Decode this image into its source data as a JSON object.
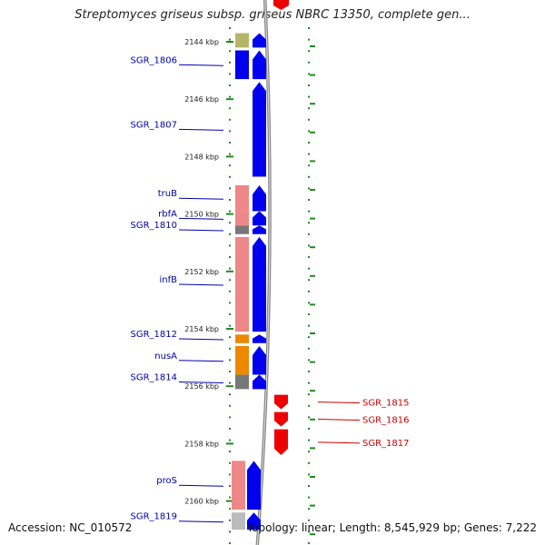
{
  "title": "Streptomyces griseus subsp. griseus NBRC 13350, complete gen...",
  "footer": {
    "accession": "Accession: NC_010572",
    "stats": "Topology: linear; Length: 8,545,929 bp; Genes: 7,222"
  },
  "colors": {
    "forward_gene": "#0000ee",
    "reverse_gene": "#ee0000",
    "label_forward": "#0000aa",
    "label_reverse": "#cc0000",
    "tick": "#228822",
    "backbone": "#888888"
  },
  "kbp_markers": [
    {
      "label": "2144 kbp",
      "pos": 2144
    },
    {
      "label": "2146 kbp",
      "pos": 2146
    },
    {
      "label": "2148 kbp",
      "pos": 2148
    },
    {
      "label": "2150 kbp",
      "pos": 2150
    },
    {
      "label": "2152 kbp",
      "pos": 2152
    },
    {
      "label": "2154 kbp",
      "pos": 2154
    },
    {
      "label": "2156 kbp",
      "pos": 2156
    },
    {
      "label": "2158 kbp",
      "pos": 2158
    },
    {
      "label": "2160 kbp",
      "pos": 2160
    }
  ],
  "genes": [
    {
      "label": "",
      "strand": "+",
      "start": 2143.7,
      "end": 2144.2,
      "cog": "#b5b56a"
    },
    {
      "label": "SGR_1806",
      "strand": "+",
      "start": 2144.3,
      "end": 2145.3,
      "cog": "#0000ee"
    },
    {
      "label": "SGR_1807",
      "strand": "+",
      "start": 2145.4,
      "end": 2148.7,
      "cog": ""
    },
    {
      "label": "truB",
      "strand": "+",
      "start": 2149.0,
      "end": 2149.9,
      "cog": "#ee8888"
    },
    {
      "label": "rbfA",
      "strand": "+",
      "start": 2149.9,
      "end": 2150.4,
      "cog": "#ee8888"
    },
    {
      "label": "SGR_1810",
      "strand": "+",
      "start": 2150.4,
      "end": 2150.7,
      "cog": "#777777"
    },
    {
      "label": "infB",
      "strand": "+",
      "start": 2150.8,
      "end": 2154.1,
      "cog": "#ee8888"
    },
    {
      "label": "SGR_1812",
      "strand": "+",
      "start": 2154.2,
      "end": 2154.5,
      "cog": "#ee8800"
    },
    {
      "label": "nusA",
      "strand": "+",
      "start": 2154.6,
      "end": 2155.6,
      "cog": "#ee8800"
    },
    {
      "label": "SGR_1814",
      "strand": "+",
      "start": 2155.6,
      "end": 2156.1,
      "cog": "#777777"
    },
    {
      "label": "SGR_1815",
      "strand": "-",
      "start": 2156.3,
      "end": 2156.8,
      "cog": ""
    },
    {
      "label": "SGR_1816",
      "strand": "-",
      "start": 2156.9,
      "end": 2157.4,
      "cog": ""
    },
    {
      "label": "SGR_1817",
      "strand": "-",
      "start": 2157.5,
      "end": 2158.4,
      "cog": ""
    },
    {
      "label": "proS",
      "strand": "+",
      "start": 2158.6,
      "end": 2160.3,
      "cog": "#ee8888"
    },
    {
      "label": "SGR_1819",
      "strand": "+",
      "start": 2160.4,
      "end": 2161.0,
      "cog": "#bbbbbb"
    }
  ]
}
